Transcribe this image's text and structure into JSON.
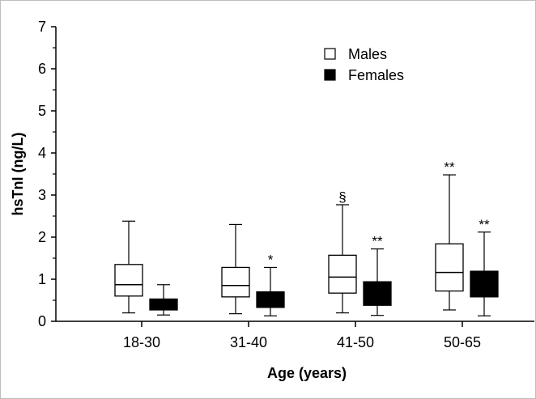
{
  "chart_data": {
    "type": "boxplot",
    "title": "",
    "xlabel": "Age (years)",
    "ylabel": "hsTnI (ng/L)",
    "ylim": [
      0,
      7
    ],
    "yticks": [
      "0",
      "1",
      "2",
      "3",
      "4",
      "5",
      "6",
      "7"
    ],
    "categories": [
      "18-30",
      "31-40",
      "41-50",
      "50-65"
    ],
    "series": [
      {
        "name": "Males",
        "fill": "#ffffff",
        "boxes": [
          {
            "min": 0.2,
            "q1": 0.6,
            "median": 0.87,
            "q3": 1.35,
            "max": 2.38,
            "annotation": ""
          },
          {
            "min": 0.18,
            "q1": 0.58,
            "median": 0.85,
            "q3": 1.28,
            "max": 2.3,
            "annotation": ""
          },
          {
            "min": 0.2,
            "q1": 0.67,
            "median": 1.05,
            "q3": 1.57,
            "max": 2.77,
            "annotation": "§"
          },
          {
            "min": 0.27,
            "q1": 0.72,
            "median": 1.16,
            "q3": 1.84,
            "max": 3.48,
            "annotation": "**"
          }
        ]
      },
      {
        "name": "Females",
        "fill": "#000000",
        "boxes": [
          {
            "min": 0.15,
            "q1": 0.27,
            "median": 0.38,
            "q3": 0.53,
            "max": 0.87,
            "annotation": ""
          },
          {
            "min": 0.13,
            "q1": 0.33,
            "median": 0.45,
            "q3": 0.7,
            "max": 1.28,
            "annotation": "*"
          },
          {
            "min": 0.14,
            "q1": 0.38,
            "median": 0.6,
            "q3": 0.94,
            "max": 1.72,
            "annotation": "**"
          },
          {
            "min": 0.13,
            "q1": 0.58,
            "median": 0.82,
            "q3": 1.19,
            "max": 2.12,
            "annotation": "**"
          }
        ]
      }
    ],
    "legend": {
      "position": "top-right"
    }
  }
}
